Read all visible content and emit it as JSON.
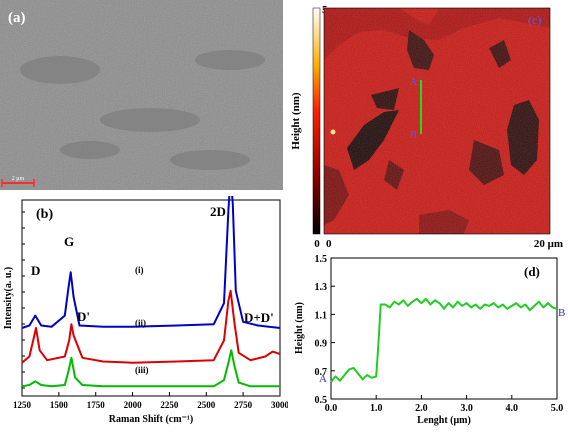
{
  "panel_a": {
    "label": "(a)",
    "scalebar_label": "2 μm"
  },
  "panel_c": {
    "label": "(c)",
    "colorbar_ylabel": "Height (nm)",
    "colorbar_max": "5",
    "colorbar_min": "0",
    "x_start": "0",
    "x_end": "20 μm",
    "marker_a": "A",
    "marker_b": "B"
  },
  "panel_b": {
    "label": "(b)",
    "peak_labels": {
      "D": "D",
      "G": "G",
      "D2": "2D",
      "Dprime": "D'",
      "DDprime": "D+D'"
    },
    "curve_labels": [
      "(i)",
      "(ii)",
      "(iii)"
    ]
  },
  "panel_d": {
    "label": "(d)",
    "marker_a": "A",
    "marker_b": "B"
  },
  "chart_data": [
    {
      "type": "line",
      "panel": "b",
      "xlabel": "Raman Shift (cm⁻¹)",
      "ylabel": "Intensity(a. u.)",
      "xlim": [
        1250,
        3000
      ],
      "x_ticks": [
        "1250",
        "1500",
        "1750",
        "2000",
        "2250",
        "2500",
        "2750",
        "3000"
      ],
      "colors": [
        "#0000cc",
        "#dd0000",
        "#00bb00"
      ],
      "series": [
        {
          "name": "(i)",
          "x": [
            1250,
            1300,
            1340,
            1380,
            1450,
            1540,
            1565,
            1580,
            1600,
            1640,
            1800,
            2000,
            2300,
            2550,
            2620,
            2650,
            2665,
            2680,
            2700,
            2750,
            2850,
            3000
          ],
          "y": [
            0.5,
            0.52,
            0.6,
            0.52,
            0.51,
            0.6,
            0.82,
            0.95,
            0.75,
            0.52,
            0.51,
            0.51,
            0.52,
            0.53,
            0.7,
            1.45,
            1.72,
            1.5,
            0.8,
            0.55,
            0.52,
            0.5
          ]
        },
        {
          "name": "(ii)",
          "x": [
            1250,
            1300,
            1330,
            1345,
            1370,
            1420,
            1540,
            1570,
            1585,
            1600,
            1620,
            1660,
            1800,
            2000,
            2300,
            2550,
            2620,
            2650,
            2665,
            2690,
            2720,
            2800,
            2900,
            2950,
            3000
          ],
          "y": [
            0.22,
            0.27,
            0.42,
            0.5,
            0.32,
            0.24,
            0.27,
            0.4,
            0.53,
            0.44,
            0.38,
            0.26,
            0.23,
            0.22,
            0.23,
            0.24,
            0.4,
            0.72,
            0.8,
            0.55,
            0.3,
            0.24,
            0.27,
            0.31,
            0.29
          ]
        },
        {
          "name": "(iii)",
          "x": [
            1250,
            1300,
            1340,
            1380,
            1450,
            1540,
            1565,
            1585,
            1610,
            1660,
            1800,
            2000,
            2300,
            2550,
            2620,
            2650,
            2670,
            2690,
            2720,
            2800,
            3000
          ],
          "y": [
            0.03,
            0.04,
            0.07,
            0.04,
            0.03,
            0.04,
            0.15,
            0.26,
            0.1,
            0.04,
            0.03,
            0.03,
            0.03,
            0.03,
            0.08,
            0.22,
            0.32,
            0.2,
            0.06,
            0.03,
            0.03
          ]
        }
      ]
    },
    {
      "type": "line",
      "panel": "d",
      "xlabel": "Lenght (μm)",
      "ylabel": "Height (nm)",
      "xlim": [
        0,
        5
      ],
      "ylim": [
        0.5,
        1.5
      ],
      "x_ticks": [
        "0.0",
        "1.0",
        "2.0",
        "3.0",
        "4.0",
        "5.0"
      ],
      "y_ticks": [
        "0.5",
        "0.7",
        "0.9",
        "1.1",
        "1.3",
        "1.5"
      ],
      "color": "#22cc22",
      "series": [
        {
          "name": "",
          "x": [
            0.0,
            0.1,
            0.2,
            0.3,
            0.4,
            0.5,
            0.6,
            0.7,
            0.8,
            0.9,
            1.0,
            1.05,
            1.1,
            1.2,
            1.3,
            1.4,
            1.5,
            1.6,
            1.7,
            1.8,
            1.9,
            2.0,
            2.1,
            2.2,
            2.3,
            2.4,
            2.5,
            2.6,
            2.7,
            2.8,
            2.9,
            3.0,
            3.1,
            3.2,
            3.3,
            3.4,
            3.5,
            3.6,
            3.7,
            3.8,
            3.9,
            4.0,
            4.1,
            4.2,
            4.3,
            4.4,
            4.5,
            4.6,
            4.7,
            4.8,
            4.9,
            5.0
          ],
          "y": [
            0.62,
            0.66,
            0.63,
            0.67,
            0.71,
            0.72,
            0.68,
            0.64,
            0.67,
            0.65,
            0.66,
            0.9,
            1.17,
            1.17,
            1.15,
            1.19,
            1.17,
            1.2,
            1.16,
            1.19,
            1.21,
            1.18,
            1.21,
            1.17,
            1.2,
            1.18,
            1.14,
            1.18,
            1.15,
            1.19,
            1.16,
            1.18,
            1.15,
            1.17,
            1.14,
            1.17,
            1.16,
            1.18,
            1.15,
            1.17,
            1.14,
            1.16,
            1.18,
            1.15,
            1.17,
            1.13,
            1.16,
            1.19,
            1.15,
            1.18,
            1.15,
            1.14
          ]
        }
      ]
    }
  ]
}
